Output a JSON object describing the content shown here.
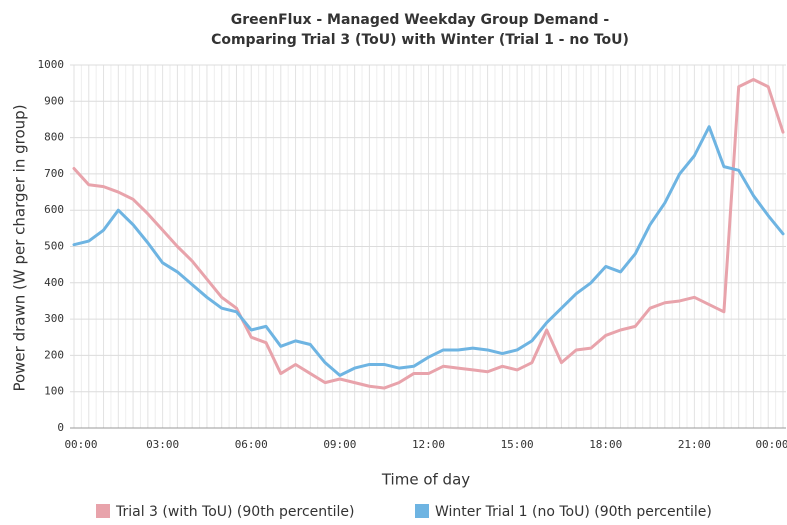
{
  "chart_data": {
    "type": "line",
    "title": "GreenFlux - Managed Weekday Group Demand -",
    "subtitle": "Comparing Trial 3 (ToU) with Winter (Trial 1 - no ToU)",
    "x_label": "Time of day",
    "y_label": "Power drawn (W per charger in group)",
    "categories": [
      "00:00",
      null,
      null,
      null,
      null,
      null,
      "03:00",
      null,
      null,
      null,
      null,
      null,
      "06:00",
      null,
      null,
      null,
      null,
      null,
      "09:00",
      null,
      null,
      null,
      null,
      null,
      "12:00",
      null,
      null,
      null,
      null,
      null,
      "15:00",
      null,
      null,
      null,
      null,
      null,
      "18:00",
      null,
      null,
      null,
      null,
      null,
      "21:00",
      null,
      null,
      null,
      null,
      null,
      "00:00"
    ],
    "series": [
      {
        "name": "Trial 3 (with ToU) (90th percentile)",
        "color": "#e8a3ab",
        "values": [
          715,
          670,
          665,
          650,
          630,
          590,
          545,
          500,
          460,
          410,
          360,
          330,
          250,
          235,
          150,
          175,
          150,
          125,
          135,
          125,
          115,
          110,
          125,
          150,
          150,
          170,
          165,
          160,
          155,
          170,
          160,
          180,
          270,
          180,
          215,
          220,
          255,
          270,
          280,
          330,
          345,
          350,
          360,
          340,
          320,
          940,
          960,
          940,
          815
        ]
      },
      {
        "name": "Winter Trial 1 (no ToU) (90th percentile)",
        "color": "#6eb4e2",
        "values": [
          505,
          515,
          545,
          600,
          560,
          510,
          455,
          430,
          395,
          360,
          330,
          320,
          270,
          280,
          225,
          240,
          230,
          180,
          145,
          165,
          175,
          175,
          165,
          170,
          195,
          215,
          215,
          220,
          215,
          205,
          215,
          240,
          290,
          330,
          370,
          400,
          445,
          430,
          480,
          560,
          620,
          700,
          750,
          830,
          720,
          710,
          640,
          585,
          535
        ]
      }
    ],
    "ylim": [
      0,
      1000
    ],
    "yticks": [
      0,
      100,
      200,
      300,
      400,
      500,
      600,
      700,
      800,
      900,
      1000
    ],
    "grid": true,
    "legend": "bottom"
  }
}
